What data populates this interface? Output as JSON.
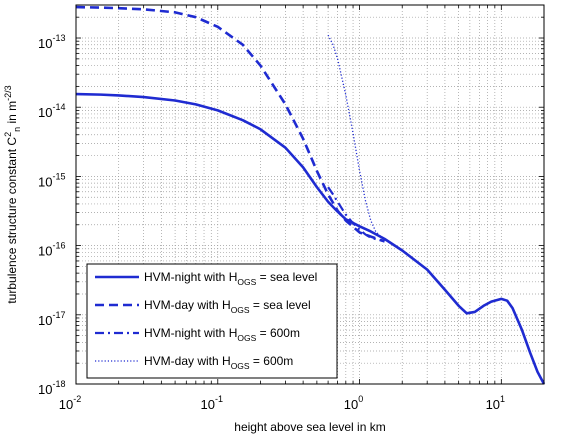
{
  "chart_data": {
    "type": "line",
    "xlabel": "height above sea level in km",
    "ylabel": {
      "prefix": "turbulence  structure  constant  C",
      "superscript": "2",
      "subscript": "n",
      "suffix": "  in  m",
      "unit_exponent": "-2/3"
    },
    "xscale": "log",
    "yscale": "log",
    "xlim": [
      0.01,
      20
    ],
    "ylim": [
      1e-18,
      3e-13
    ],
    "grid": "major-and-minor dotted",
    "legend_position": "bottom-left",
    "x_ticks": [
      {
        "value": 0.01,
        "base": "10",
        "exp": "-2"
      },
      {
        "value": 0.1,
        "base": "10",
        "exp": "-1"
      },
      {
        "value": 1,
        "base": "10",
        "exp": "0"
      },
      {
        "value": 10,
        "base": "10",
        "exp": "1"
      }
    ],
    "y_ticks": [
      {
        "value": 1e-18,
        "base": "10",
        "exp": "-18"
      },
      {
        "value": 1e-17,
        "base": "10",
        "exp": "-17"
      },
      {
        "value": 1e-16,
        "base": "10",
        "exp": "-16"
      },
      {
        "value": 1e-15,
        "base": "10",
        "exp": "-15"
      },
      {
        "value": 1e-14,
        "base": "10",
        "exp": "-14"
      },
      {
        "value": 1e-13,
        "base": "10",
        "exp": "-13"
      }
    ],
    "line_color": "#1f2bd1",
    "series": [
      {
        "legend_parts": [
          "HVM-night  with  H",
          "OGS",
          " = sea level"
        ],
        "style": "solid",
        "x": [
          0.01,
          0.015,
          0.02,
          0.03,
          0.05,
          0.07,
          0.1,
          0.15,
          0.2,
          0.3,
          0.4,
          0.5,
          0.6,
          0.7,
          0.8,
          1.0,
          1.2,
          1.5,
          2.0,
          3.0,
          4.0,
          5.0,
          5.7,
          6.5,
          7.5,
          8.5,
          10.0,
          11.0,
          12.0,
          14.0,
          16.0,
          18.0,
          20.0
        ],
        "y": [
          1.55e-14,
          1.52e-14,
          1.48e-14,
          1.4e-14,
          1.25e-14,
          1.1e-14,
          9e-15,
          6.5e-15,
          4.8e-15,
          2.6e-15,
          1.35e-15,
          7e-16,
          4.3e-16,
          3.1e-16,
          2.4e-16,
          1.9e-16,
          1.6e-16,
          1.25e-16,
          8.5e-17,
          4.5e-17,
          2.3e-17,
          1.35e-17,
          1.05e-17,
          1.1e-17,
          1.35e-17,
          1.55e-17,
          1.7e-17,
          1.6e-17,
          1.25e-17,
          6e-18,
          2.8e-18,
          1.5e-18,
          1e-18
        ]
      },
      {
        "legend_parts": [
          "HVM-day  with  H",
          "OGS",
          " = sea level"
        ],
        "style": "dashed",
        "x": [
          0.01,
          0.015,
          0.02,
          0.03,
          0.05,
          0.07,
          0.1,
          0.15,
          0.2,
          0.3,
          0.4,
          0.5,
          0.6,
          0.7,
          0.8,
          1.0,
          1.2,
          1.5
        ],
        "y": [
          2.8e-13,
          2.75e-13,
          2.7e-13,
          2.6e-13,
          2.35e-13,
          2e-13,
          1.45e-13,
          8e-14,
          4e-14,
          1.1e-14,
          3.5e-15,
          1.2e-15,
          5.5e-16,
          3.2e-16,
          2.3e-16,
          1.55e-16,
          1.35e-16,
          1.15e-16
        ]
      },
      {
        "legend_parts": [
          "HVM-night  with  H",
          "OGS",
          " = 600m"
        ],
        "style": "dashdot",
        "x": [
          0.6,
          0.65,
          0.7,
          0.8,
          0.9,
          1.0,
          1.1,
          1.2,
          1.5
        ],
        "y": [
          7e-16,
          5.5e-16,
          4.3e-16,
          2.8e-16,
          2.1e-16,
          1.7e-16,
          1.45e-16,
          1.3e-16,
          1.15e-16
        ]
      },
      {
        "legend_parts": [
          "HVM-day  with  H",
          "OGS",
          " = 600m"
        ],
        "style": "dotted",
        "x": [
          0.6,
          0.65,
          0.7,
          0.8,
          0.9,
          1.0,
          1.1,
          1.2,
          1.3,
          1.5
        ],
        "y": [
          1.1e-13,
          8e-14,
          5e-14,
          1.5e-14,
          4.2e-15,
          1.2e-15,
          4.5e-16,
          2.3e-16,
          1.6e-16,
          1.2e-16
        ]
      }
    ]
  }
}
